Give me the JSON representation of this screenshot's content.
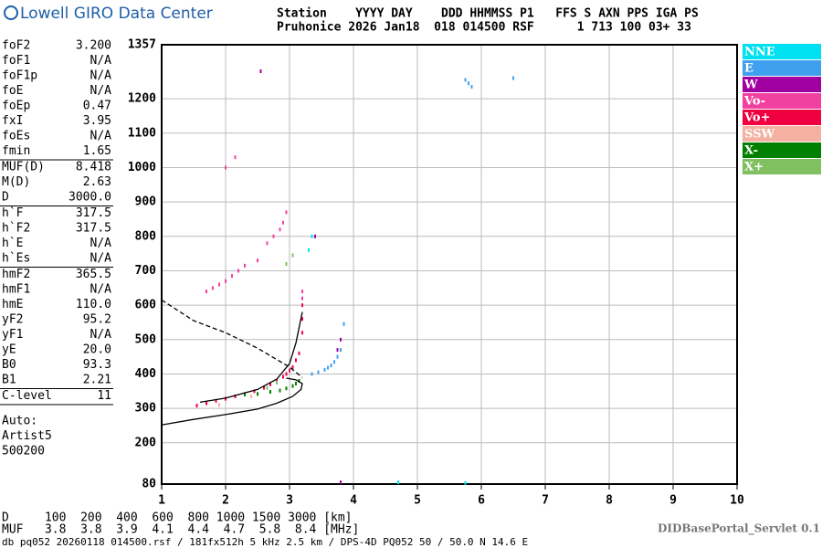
{
  "header": {
    "logo": "Lowell GIRO Data Center",
    "line1": "Station    YYYY DAY    DDD HHMMSS P1   FFS S AXN PPS IGA PS",
    "line2": "Pruhonice 2026 Jan18  018 014500 RSF      1 713 100 03+ 33"
  },
  "params": [
    [
      [
        "foF2",
        "3.200"
      ],
      [
        "foF1",
        "N/A"
      ],
      [
        "foF1p",
        "N/A"
      ],
      [
        "foE",
        "N/A"
      ],
      [
        "foEp",
        "0.47"
      ],
      [
        "fxI",
        "3.95"
      ],
      [
        "foEs",
        "N/A"
      ],
      [
        "fmin",
        "1.65"
      ]
    ],
    [
      [
        "MUF(D)",
        "8.418"
      ],
      [
        "M(D)",
        "2.63"
      ],
      [
        "D",
        "3000.0"
      ]
    ],
    [
      [
        "h`F",
        "317.5"
      ],
      [
        "h`F2",
        "317.5"
      ],
      [
        "h`E",
        "N/A"
      ],
      [
        "h`Es",
        "N/A"
      ]
    ],
    [
      [
        "hmF2",
        "365.5"
      ],
      [
        "hmF1",
        "N/A"
      ],
      [
        "hmE",
        "110.0"
      ],
      [
        "yF2",
        "95.2"
      ],
      [
        "yF1",
        "N/A"
      ],
      [
        "yE",
        "20.0"
      ],
      [
        "B0",
        "93.3"
      ],
      [
        "B1",
        "2.21"
      ]
    ],
    [
      [
        "C-level",
        "11"
      ]
    ]
  ],
  "auto": [
    "Auto:",
    "Artist5",
    "500200"
  ],
  "footer": {
    "d_line": "D     100  200  400  600  800 1000 1500 3000 [km]",
    "muf_line": "MUF   3.8  3.8  3.9  4.1  4.4  4.7  5.8  8.4 [MHz]",
    "servlet": "DIDBasePortal_Servlet 0.1",
    "info": "db pq052 20260118 014500.rsf / 181fx512h 5 kHz 2.5 km / DPS-4D PQ052 50 / 50.0 N 14.6 E"
  },
  "chart_data": {
    "type": "scatter",
    "xlim": [
      1,
      10
    ],
    "xticks": [
      1,
      2,
      3,
      4,
      5,
      6,
      7,
      8,
      9,
      10
    ],
    "ylim": [
      80,
      1357
    ],
    "yticks": [
      80,
      200,
      300,
      400,
      500,
      600,
      700,
      800,
      900,
      1000,
      1100,
      1200,
      1357
    ],
    "grid": true,
    "series": [
      {
        "name": "NNE",
        "color": "#00e0f0",
        "x": [
          3.3,
          3.35,
          4.7,
          5.75
        ],
        "values": [
          760,
          800,
          85,
          83
        ]
      },
      {
        "name": "E",
        "color": "#40a0f0",
        "x": [
          3.35,
          3.45,
          3.55,
          3.6,
          3.65,
          3.7,
          3.75,
          3.8,
          3.85,
          5.75,
          5.8,
          5.85,
          6.5
        ],
        "values": [
          400,
          405,
          412,
          418,
          425,
          435,
          450,
          470,
          545,
          1255,
          1245,
          1235,
          1260
        ]
      },
      {
        "name": "W",
        "color": "#a000a0",
        "x": [
          3.75,
          3.8,
          3.4,
          2.55,
          3.8
        ],
        "values": [
          470,
          500,
          800,
          1280,
          85
        ]
      },
      {
        "name": "Vo-",
        "color": "#f040a0",
        "x": [
          1.7,
          1.8,
          1.9,
          2.0,
          2.1,
          2.2,
          2.3,
          2.5,
          2.65,
          2.75,
          2.85,
          2.9,
          2.95,
          3.2,
          3.2,
          2.0,
          2.15
        ],
        "values": [
          640,
          650,
          660,
          670,
          685,
          700,
          715,
          730,
          780,
          800,
          820,
          840,
          870,
          620,
          640,
          1000,
          1030
        ]
      },
      {
        "name": "Vo+",
        "color": "#f00040",
        "x": [
          1.55,
          1.7,
          1.85,
          2.0,
          2.15,
          2.3,
          2.45,
          2.6,
          2.7,
          2.8,
          2.9,
          2.95,
          3.0,
          3.05,
          3.1,
          3.15,
          3.2,
          3.2,
          3.2
        ],
        "values": [
          308,
          315,
          322,
          328,
          335,
          342,
          350,
          360,
          370,
          380,
          392,
          400,
          410,
          420,
          440,
          460,
          520,
          560,
          600
        ]
      },
      {
        "name": "SSW",
        "color": "#f4b0a0",
        "x": [
          1.9,
          2.4
        ],
        "values": [
          310,
          335
        ]
      },
      {
        "name": "X-",
        "color": "#008000",
        "x": [
          2.3,
          2.5,
          2.7,
          2.85,
          2.95,
          3.05,
          3.1,
          3.15
        ],
        "values": [
          340,
          342,
          348,
          352,
          358,
          365,
          372,
          380
        ]
      },
      {
        "name": "X+",
        "color": "#80c060",
        "x": [
          2.65,
          2.8,
          2.95,
          3.05
        ],
        "values": [
          360,
          375,
          720,
          745
        ]
      }
    ],
    "profile": {
      "x": [
        1.0,
        1.5,
        2.0,
        2.5,
        2.8,
        3.05,
        3.18,
        3.2,
        3.1,
        2.95,
        null,
        1.6,
        2.0,
        2.5,
        2.8,
        3.0,
        3.1,
        3.2
      ],
      "values": [
        252,
        268,
        282,
        298,
        315,
        335,
        355,
        372,
        383,
        388,
        null,
        318,
        330,
        355,
        385,
        430,
        490,
        580
      ]
    },
    "dashed": {
      "x": [
        1.0,
        1.5,
        2.0,
        2.5,
        3.0,
        3.2
      ],
      "values": [
        615,
        555,
        520,
        475,
        420,
        390
      ]
    }
  }
}
